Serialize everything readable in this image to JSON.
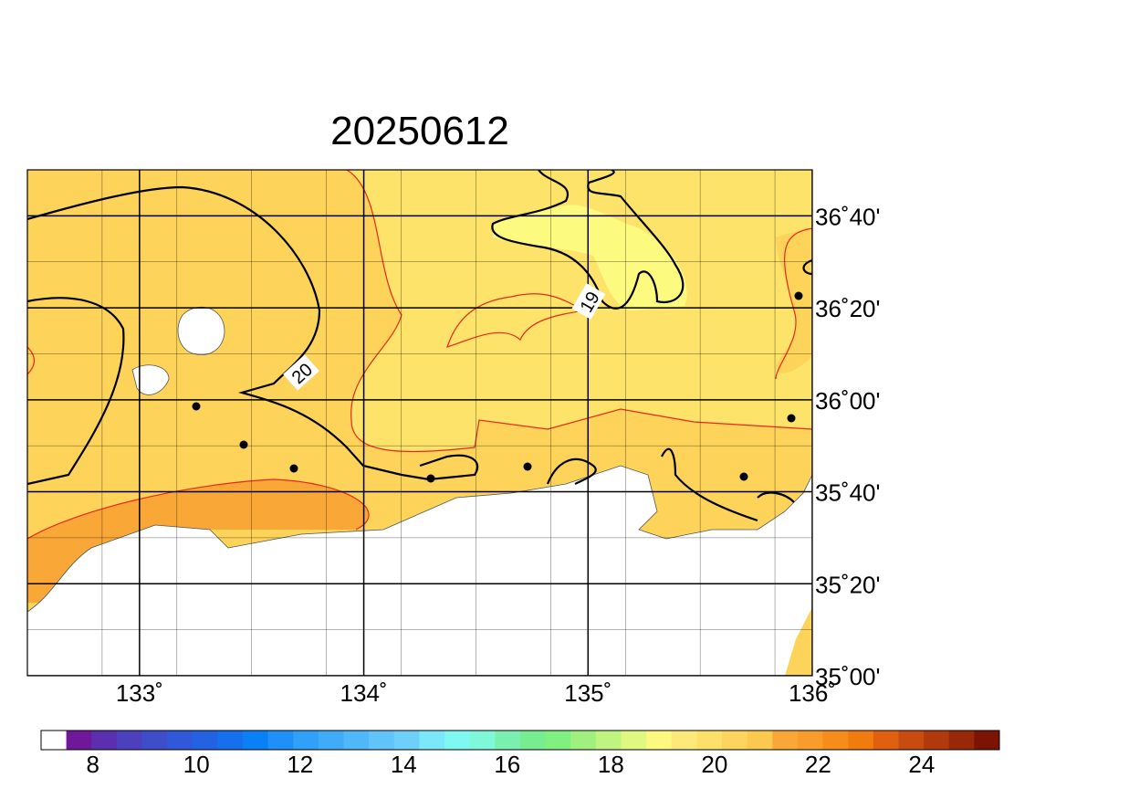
{
  "map": {
    "title": "20250612",
    "lonlim": [
      132.5,
      136.0
    ],
    "latlim": [
      35.0,
      36.8333
    ],
    "lon_ticks": [
      {
        "value": 133,
        "label": "133˚"
      },
      {
        "value": 134,
        "label": "134˚"
      },
      {
        "value": 135,
        "label": "135˚"
      },
      {
        "value": 136,
        "label": "136˚"
      }
    ],
    "lat_ticks": [
      {
        "value": 35.0,
        "label": "35˚00'"
      },
      {
        "value": 35.3333,
        "label": "35˚20'"
      },
      {
        "value": 35.6667,
        "label": "35˚40'"
      },
      {
        "value": 36.0,
        "label": "36˚00'"
      },
      {
        "value": 36.3333,
        "label": "36˚20'"
      },
      {
        "value": 36.6667,
        "label": "36˚40'"
      }
    ],
    "contour_labels": [
      20,
      19
    ],
    "colorbar": {
      "lim": [
        7.0,
        25.5
      ],
      "ticks": [
        8,
        10,
        12,
        14,
        16,
        18,
        20,
        22,
        24
      ],
      "colors": [
        "#ffffff",
        "#70189a",
        "#5a30ae",
        "#4c40bc",
        "#3e4ec8",
        "#3058d8",
        "#2462e4",
        "#1670ee",
        "#0a80f6",
        "#1e90f8",
        "#30a0f8",
        "#40acf8",
        "#50b8f8",
        "#60c4f8",
        "#6ed0f8",
        "#7ae8f8",
        "#7ef8f0",
        "#7ef8d8",
        "#7af0b0",
        "#78ec90",
        "#80f080",
        "#a0f080",
        "#c0f480",
        "#e0f880",
        "#fcf880",
        "#fde87a",
        "#fde06a",
        "#fcd45e",
        "#fbc850",
        "#f9a838",
        "#f89c2c",
        "#f68c1c",
        "#f07c10",
        "#e06010",
        "#c84c10",
        "#b03a0c",
        "#982808",
        "#7c1404"
      ]
    }
  }
}
